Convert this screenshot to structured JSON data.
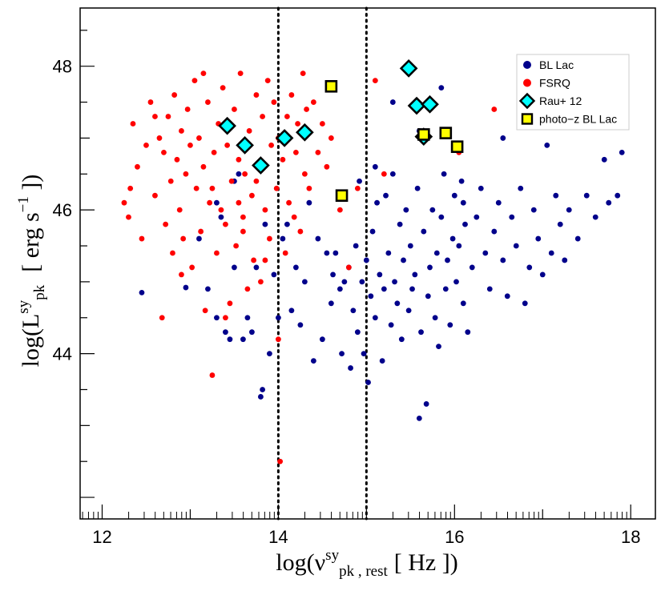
{
  "chart_data": {
    "type": "scatter",
    "title": "",
    "xlabel": {
      "prefix": "log(",
      "symbol": "ν",
      "superscript": "sy",
      "subscript": "pk , rest",
      "units": "[ Hz ]",
      "suffix": ")"
    },
    "ylabel": {
      "prefix": "log(",
      "symbol": "L",
      "superscript": "sy",
      "subscript": "pk",
      "units_pre": "[ erg s",
      "units_exp": "−1",
      "units_post": " ]",
      "suffix": ")"
    },
    "xlim": [
      11.75,
      18.28
    ],
    "ylim": [
      41.7,
      48.81
    ],
    "x_ticks": [
      "12",
      "14",
      "16",
      "18"
    ],
    "y_ticks": [
      "44",
      "46",
      "48"
    ],
    "vlines": [
      14.0,
      15.0
    ],
    "legend": {
      "position": "top-right",
      "entries": [
        {
          "label": "BL Lac",
          "marker": "circle",
          "color": "#00008b"
        },
        {
          "label": "FSRQ",
          "marker": "circle",
          "color": "#ff0000"
        },
        {
          "label": "Rau+ 12",
          "marker": "diamond",
          "color": "#00ffff"
        },
        {
          "label": "photo−z BL Lac",
          "marker": "square",
          "color": "#ffff00"
        }
      ]
    },
    "colors": {
      "bl_lac": "#00008b",
      "fsrq": "#ff0000",
      "rau12_fill": "#00ffff",
      "photoz_fill": "#ffff00",
      "marker_edge": "#000000"
    },
    "series": [
      {
        "name": "BL Lac",
        "points": [
          [
            12.45,
            44.85
          ],
          [
            12.95,
            44.92
          ],
          [
            13.1,
            45.6
          ],
          [
            13.2,
            44.9
          ],
          [
            13.3,
            44.5
          ],
          [
            13.3,
            46.1
          ],
          [
            13.35,
            45.9
          ],
          [
            13.4,
            44.3
          ],
          [
            13.45,
            44.2
          ],
          [
            13.5,
            45.2
          ],
          [
            13.5,
            46.4
          ],
          [
            13.55,
            46.5
          ],
          [
            13.6,
            44.2
          ],
          [
            13.65,
            44.5
          ],
          [
            13.7,
            44.3
          ],
          [
            13.75,
            45.2
          ],
          [
            13.8,
            43.4
          ],
          [
            13.82,
            43.5
          ],
          [
            13.85,
            45.8
          ],
          [
            13.9,
            44.0
          ],
          [
            13.95,
            45.1
          ],
          [
            14.0,
            44.5
          ],
          [
            14.05,
            45.6
          ],
          [
            14.1,
            45.8
          ],
          [
            14.15,
            44.6
          ],
          [
            14.2,
            45.2
          ],
          [
            14.25,
            44.4
          ],
          [
            14.3,
            45.0
          ],
          [
            14.35,
            46.1
          ],
          [
            14.4,
            43.9
          ],
          [
            14.45,
            45.6
          ],
          [
            14.5,
            44.2
          ],
          [
            14.55,
            45.4
          ],
          [
            14.6,
            44.7
          ],
          [
            14.62,
            45.1
          ],
          [
            14.65,
            45.4
          ],
          [
            14.7,
            44.9
          ],
          [
            14.72,
            44.0
          ],
          [
            14.75,
            45.0
          ],
          [
            14.8,
            45.2
          ],
          [
            14.82,
            43.8
          ],
          [
            14.85,
            44.6
          ],
          [
            14.88,
            45.5
          ],
          [
            14.9,
            44.3
          ],
          [
            14.92,
            46.4
          ],
          [
            14.95,
            45.0
          ],
          [
            14.97,
            44.0
          ],
          [
            15.0,
            45.3
          ],
          [
            15.02,
            43.6
          ],
          [
            15.05,
            44.8
          ],
          [
            15.07,
            45.7
          ],
          [
            15.1,
            44.5
          ],
          [
            15.12,
            46.1
          ],
          [
            15.15,
            45.1
          ],
          [
            15.18,
            43.9
          ],
          [
            15.2,
            44.9
          ],
          [
            15.22,
            46.2
          ],
          [
            15.25,
            45.4
          ],
          [
            15.28,
            44.4
          ],
          [
            15.3,
            46.5
          ],
          [
            15.32,
            45.0
          ],
          [
            15.35,
            44.7
          ],
          [
            15.38,
            45.8
          ],
          [
            15.4,
            44.2
          ],
          [
            15.42,
            45.3
          ],
          [
            15.45,
            46.0
          ],
          [
            15.48,
            44.6
          ],
          [
            15.5,
            45.5
          ],
          [
            15.52,
            44.9
          ],
          [
            15.55,
            45.1
          ],
          [
            15.58,
            46.3
          ],
          [
            15.6,
            43.1
          ],
          [
            15.62,
            44.3
          ],
          [
            15.65,
            45.7
          ],
          [
            15.68,
            43.3
          ],
          [
            15.7,
            44.8
          ],
          [
            15.72,
            45.2
          ],
          [
            15.75,
            46.0
          ],
          [
            15.78,
            44.5
          ],
          [
            15.8,
            45.4
          ],
          [
            15.82,
            44.1
          ],
          [
            15.85,
            45.9
          ],
          [
            15.88,
            46.5
          ],
          [
            15.9,
            44.9
          ],
          [
            15.92,
            45.3
          ],
          [
            15.95,
            44.4
          ],
          [
            15.98,
            45.6
          ],
          [
            16.0,
            46.2
          ],
          [
            16.02,
            45.0
          ],
          [
            16.05,
            45.5
          ],
          [
            16.08,
            46.4
          ],
          [
            16.1,
            44.7
          ],
          [
            16.12,
            45.8
          ],
          [
            16.15,
            44.3
          ],
          [
            16.2,
            45.2
          ],
          [
            16.25,
            45.9
          ],
          [
            16.3,
            46.3
          ],
          [
            16.35,
            45.4
          ],
          [
            16.4,
            44.9
          ],
          [
            16.45,
            45.7
          ],
          [
            16.5,
            46.1
          ],
          [
            16.55,
            45.3
          ],
          [
            16.6,
            44.8
          ],
          [
            16.65,
            45.9
          ],
          [
            16.7,
            45.5
          ],
          [
            16.75,
            46.3
          ],
          [
            16.8,
            44.7
          ],
          [
            16.85,
            45.2
          ],
          [
            16.9,
            46.0
          ],
          [
            16.95,
            45.6
          ],
          [
            17.0,
            45.1
          ],
          [
            17.05,
            46.9
          ],
          [
            17.1,
            45.4
          ],
          [
            17.15,
            46.2
          ],
          [
            17.2,
            45.8
          ],
          [
            17.25,
            45.3
          ],
          [
            17.3,
            46.0
          ],
          [
            17.4,
            45.6
          ],
          [
            17.5,
            46.2
          ],
          [
            17.6,
            45.9
          ],
          [
            17.7,
            46.7
          ],
          [
            17.75,
            46.1
          ],
          [
            17.85,
            46.2
          ],
          [
            17.9,
            46.8
          ],
          [
            15.1,
            46.6
          ],
          [
            15.3,
            47.5
          ],
          [
            15.85,
            47.7
          ],
          [
            16.55,
            47.0
          ],
          [
            15.6,
            47.1
          ],
          [
            16.1,
            46.1
          ]
        ]
      },
      {
        "name": "FSRQ",
        "points": [
          [
            12.25,
            46.1
          ],
          [
            12.3,
            45.9
          ],
          [
            12.32,
            46.3
          ],
          [
            12.35,
            47.2
          ],
          [
            12.4,
            46.6
          ],
          [
            12.45,
            45.6
          ],
          [
            12.5,
            46.9
          ],
          [
            12.55,
            47.5
          ],
          [
            12.6,
            46.2
          ],
          [
            12.65,
            47.0
          ],
          [
            12.68,
            44.5
          ],
          [
            12.7,
            46.8
          ],
          [
            12.72,
            45.8
          ],
          [
            12.75,
            47.3
          ],
          [
            12.78,
            46.4
          ],
          [
            12.8,
            45.4
          ],
          [
            12.82,
            47.6
          ],
          [
            12.85,
            46.7
          ],
          [
            12.88,
            46.0
          ],
          [
            12.9,
            47.1
          ],
          [
            12.92,
            45.6
          ],
          [
            12.95,
            46.5
          ],
          [
            12.97,
            47.4
          ],
          [
            13.0,
            46.9
          ],
          [
            13.02,
            45.2
          ],
          [
            13.05,
            47.8
          ],
          [
            13.07,
            46.3
          ],
          [
            13.1,
            47.0
          ],
          [
            13.12,
            45.7
          ],
          [
            13.15,
            46.6
          ],
          [
            13.17,
            44.6
          ],
          [
            13.2,
            47.5
          ],
          [
            13.22,
            46.1
          ],
          [
            13.25,
            43.7
          ],
          [
            13.27,
            46.8
          ],
          [
            13.3,
            45.4
          ],
          [
            13.32,
            47.2
          ],
          [
            13.35,
            46.0
          ],
          [
            13.37,
            47.7
          ],
          [
            13.4,
            45.8
          ],
          [
            13.42,
            46.9
          ],
          [
            13.45,
            44.7
          ],
          [
            13.47,
            46.4
          ],
          [
            13.5,
            47.4
          ],
          [
            13.52,
            45.5
          ],
          [
            13.55,
            46.7
          ],
          [
            13.57,
            47.9
          ],
          [
            13.6,
            45.9
          ],
          [
            13.62,
            46.5
          ],
          [
            13.65,
            44.9
          ],
          [
            13.67,
            47.1
          ],
          [
            13.7,
            46.2
          ],
          [
            13.72,
            45.3
          ],
          [
            13.75,
            47.6
          ],
          [
            13.78,
            46.6
          ],
          [
            13.8,
            45.0
          ],
          [
            13.82,
            47.3
          ],
          [
            13.85,
            46.0
          ],
          [
            13.88,
            47.8
          ],
          [
            13.9,
            45.6
          ],
          [
            13.92,
            46.9
          ],
          [
            13.95,
            47.5
          ],
          [
            13.98,
            46.3
          ],
          [
            14.0,
            47.0
          ],
          [
            14.02,
            42.5
          ],
          [
            14.05,
            46.7
          ],
          [
            14.08,
            45.4
          ],
          [
            14.1,
            47.3
          ],
          [
            14.12,
            46.1
          ],
          [
            14.15,
            47.6
          ],
          [
            14.18,
            45.9
          ],
          [
            14.2,
            46.8
          ],
          [
            14.22,
            47.2
          ],
          [
            14.25,
            45.7
          ],
          [
            14.28,
            47.9
          ],
          [
            14.3,
            46.5
          ],
          [
            14.32,
            47.4
          ],
          [
            14.35,
            46.3
          ],
          [
            14.4,
            47.5
          ],
          [
            14.45,
            46.8
          ],
          [
            14.5,
            47.2
          ],
          [
            14.55,
            46.6
          ],
          [
            14.6,
            47.0
          ],
          [
            14.7,
            46.0
          ],
          [
            14.8,
            45.2
          ],
          [
            14.9,
            46.3
          ],
          [
            15.1,
            47.8
          ],
          [
            15.2,
            46.5
          ],
          [
            16.05,
            46.8
          ],
          [
            16.45,
            47.4
          ],
          [
            14.0,
            44.2
          ],
          [
            13.85,
            45.3
          ],
          [
            13.6,
            45.7
          ],
          [
            13.4,
            44.5
          ],
          [
            12.9,
            45.1
          ],
          [
            13.15,
            47.9
          ],
          [
            12.6,
            47.3
          ],
          [
            13.25,
            46.3
          ],
          [
            13.55,
            46.1
          ],
          [
            13.75,
            46.4
          ]
        ]
      },
      {
        "name": "Rau+ 12",
        "points": [
          [
            13.42,
            47.17
          ],
          [
            13.62,
            46.9
          ],
          [
            13.8,
            46.62
          ],
          [
            14.07,
            47.0
          ],
          [
            14.3,
            47.08
          ],
          [
            15.48,
            47.97
          ],
          [
            15.57,
            47.45
          ],
          [
            15.72,
            47.47
          ],
          [
            15.65,
            47.02
          ]
        ]
      },
      {
        "name": "photo−z BL Lac",
        "points": [
          [
            14.6,
            47.72
          ],
          [
            14.72,
            46.2
          ],
          [
            15.65,
            47.05
          ],
          [
            15.9,
            47.07
          ],
          [
            16.03,
            46.88
          ]
        ]
      }
    ]
  }
}
